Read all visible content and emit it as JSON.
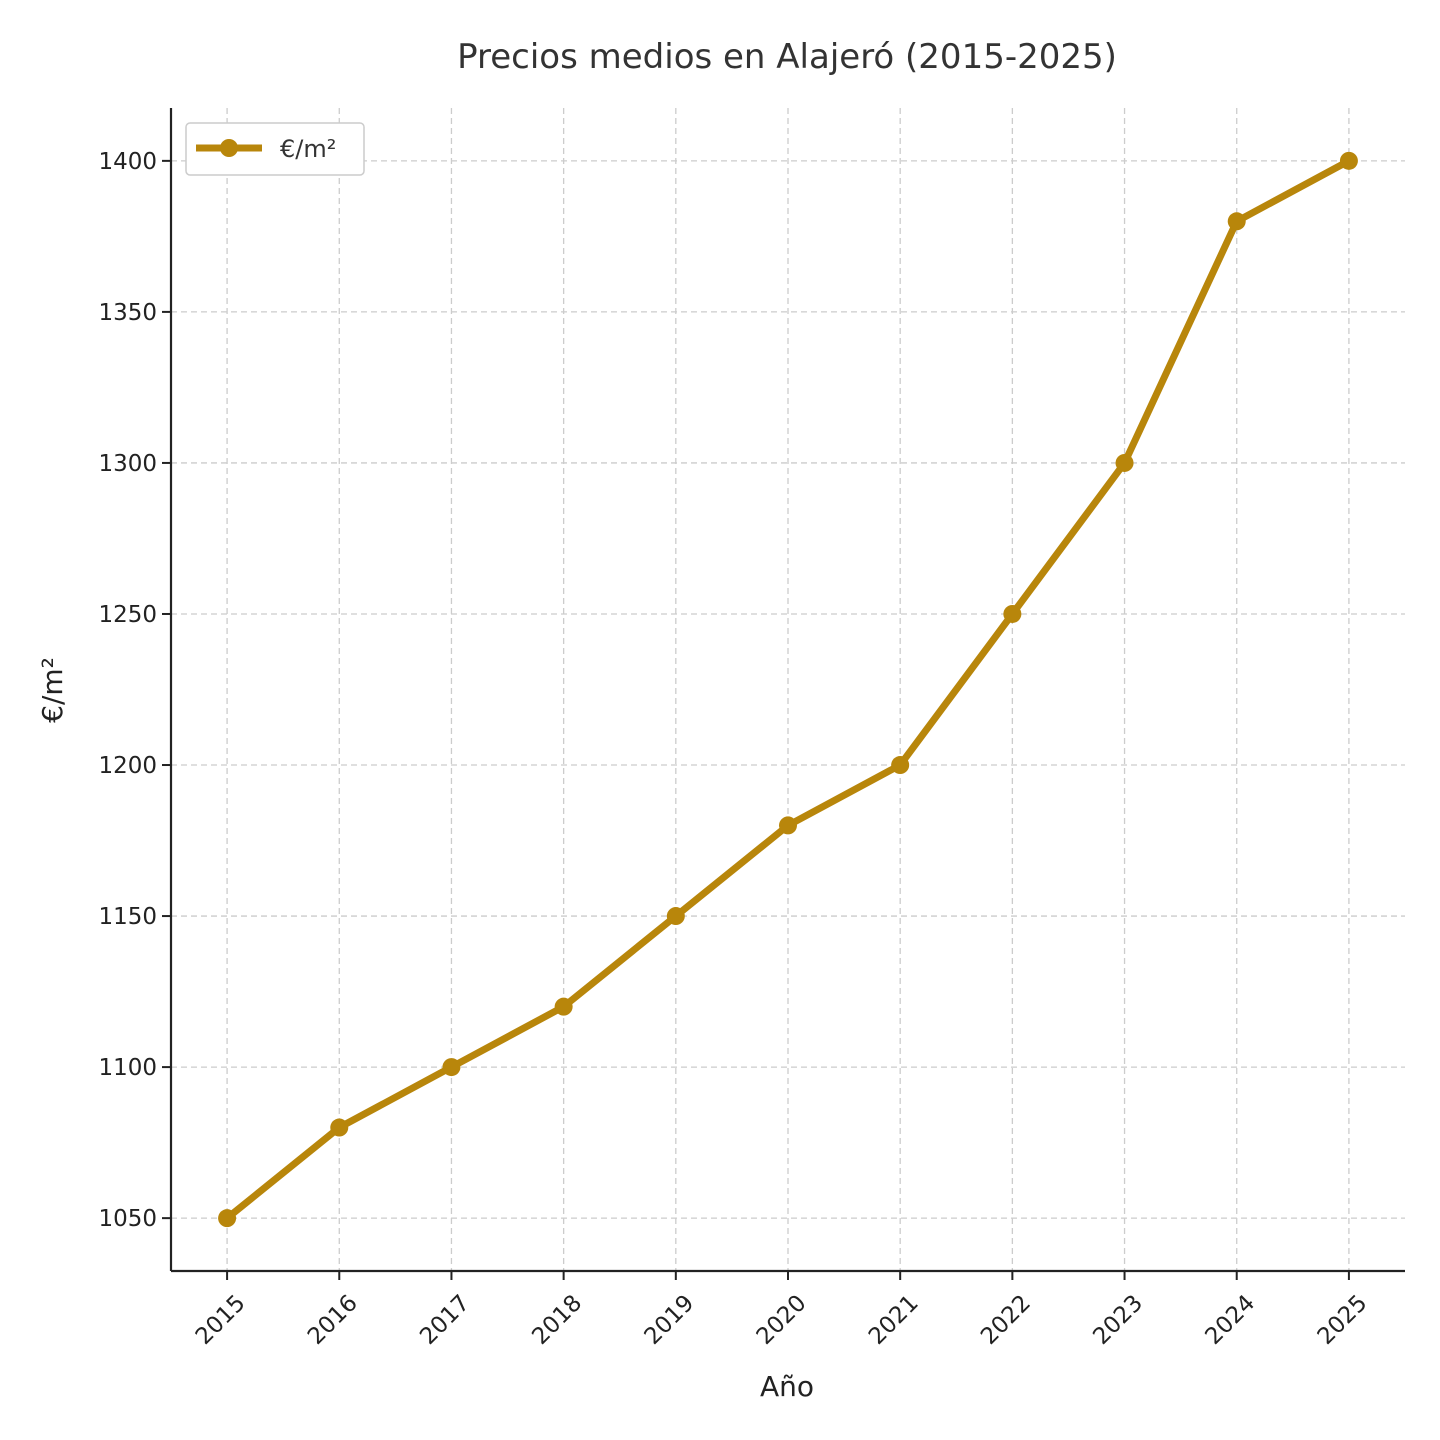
{
  "chart_data": {
    "type": "line",
    "title": "Precios medios en Alajeró (2015-2025)",
    "xlabel": "Año",
    "ylabel": "€/m²",
    "x": [
      2015,
      2016,
      2017,
      2018,
      2019,
      2020,
      2021,
      2022,
      2023,
      2024,
      2025
    ],
    "series": [
      {
        "name": "€/m²",
        "values": [
          1050,
          1080,
          1100,
          1120,
          1150,
          1180,
          1200,
          1250,
          1300,
          1380,
          1400
        ],
        "color": "#b8860b"
      }
    ],
    "yticks": [
      1050,
      1100,
      1150,
      1200,
      1250,
      1300,
      1350,
      1400
    ],
    "ylim": [
      1032.5,
      1417.5
    ],
    "xlim": [
      2014.5,
      2025.5
    ],
    "grid": true,
    "legend_position": "top-left",
    "x_tick_rotation": 45
  }
}
